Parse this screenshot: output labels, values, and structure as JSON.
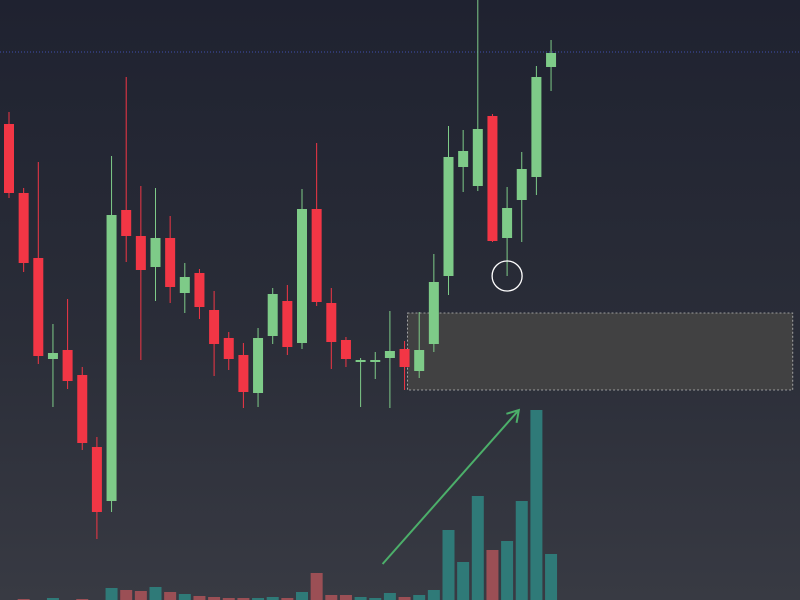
{
  "colors": {
    "background_top": "#1f2230",
    "background_bottom": "#383a43",
    "up": "#7ecb88",
    "down": "#f23645",
    "volume_up": "#2f7a78",
    "volume_down": "#9b4f55",
    "price_line": "#3f4fb0",
    "zone_fill": "#444444",
    "zone_border": "#bdbdbd",
    "marker": "#ffffff",
    "arrow": "#4caf6a"
  },
  "chart_data": {
    "type": "candlestick",
    "title": "",
    "xlabel": "",
    "ylabel": "",
    "grid": false,
    "legend": "none",
    "ylim": [
      0,
      600
    ],
    "volume_ylim": [
      0,
      190
    ],
    "horizontal_line": 548,
    "highlight_zone": {
      "x_start_index": 27.2,
      "x_end_index": 53.5,
      "y_low": 210,
      "y_high": 287
    },
    "circle_marker": {
      "index": 34,
      "value": 324
    },
    "trend_arrow": {
      "from_index": 25.5,
      "from_volume": 36,
      "to_index": 34.8,
      "to_volume": 190
    },
    "candles": [
      {
        "o": 476,
        "h": 488,
        "l": 402,
        "c": 407
      },
      {
        "o": 407,
        "h": 412,
        "l": 328,
        "c": 337
      },
      {
        "o": 342,
        "h": 438,
        "l": 236,
        "c": 244
      },
      {
        "o": 241,
        "h": 276,
        "l": 193,
        "c": 247
      },
      {
        "o": 250,
        "h": 301,
        "l": 211,
        "c": 219
      },
      {
        "o": 225,
        "h": 233,
        "l": 150,
        "c": 157
      },
      {
        "o": 153,
        "h": 163,
        "l": 61,
        "c": 88
      },
      {
        "o": 99,
        "h": 444,
        "l": 88,
        "c": 385
      },
      {
        "o": 390,
        "h": 523,
        "l": 338,
        "c": 364
      },
      {
        "o": 364,
        "h": 414,
        "l": 240,
        "c": 330
      },
      {
        "o": 333,
        "h": 412,
        "l": 299,
        "c": 362
      },
      {
        "o": 362,
        "h": 384,
        "l": 297,
        "c": 313
      },
      {
        "o": 307,
        "h": 337,
        "l": 287,
        "c": 323
      },
      {
        "o": 327,
        "h": 331,
        "l": 281,
        "c": 293
      },
      {
        "o": 290,
        "h": 309,
        "l": 224,
        "c": 256
      },
      {
        "o": 262,
        "h": 268,
        "l": 230,
        "c": 241
      },
      {
        "o": 245,
        "h": 257,
        "l": 192,
        "c": 208
      },
      {
        "o": 207,
        "h": 272,
        "l": 193,
        "c": 262
      },
      {
        "o": 264,
        "h": 312,
        "l": 256,
        "c": 306
      },
      {
        "o": 299,
        "h": 315,
        "l": 245,
        "c": 253
      },
      {
        "o": 257,
        "h": 411,
        "l": 251,
        "c": 391
      },
      {
        "o": 391,
        "h": 457,
        "l": 294,
        "c": 298
      },
      {
        "o": 297,
        "h": 312,
        "l": 231,
        "c": 258
      },
      {
        "o": 260,
        "h": 263,
        "l": 233,
        "c": 241
      },
      {
        "o": 240,
        "h": 242,
        "l": 193,
        "c": 240
      },
      {
        "o": 240,
        "h": 248,
        "l": 221,
        "c": 240
      },
      {
        "o": 242,
        "h": 289,
        "l": 192,
        "c": 249
      },
      {
        "o": 251,
        "h": 259,
        "l": 210,
        "c": 233
      },
      {
        "o": 229,
        "h": 288,
        "l": 222,
        "c": 250
      },
      {
        "o": 256,
        "h": 346,
        "l": 248,
        "c": 318
      },
      {
        "o": 324,
        "h": 474,
        "l": 305,
        "c": 443
      },
      {
        "o": 433,
        "h": 470,
        "l": 408,
        "c": 449
      },
      {
        "o": 414,
        "h": 600,
        "l": 409,
        "c": 471
      },
      {
        "o": 484,
        "h": 486,
        "l": 358,
        "c": 359
      },
      {
        "o": 362,
        "h": 413,
        "l": 324,
        "c": 392
      },
      {
        "o": 400,
        "h": 448,
        "l": 358,
        "c": 431
      },
      {
        "o": 423,
        "h": 534,
        "l": 405,
        "c": 523
      },
      {
        "o": 533,
        "h": 560,
        "l": 509,
        "c": 547
      }
    ],
    "volume": [
      0,
      1,
      0,
      2,
      0,
      1,
      0,
      12,
      10,
      9,
      13,
      8,
      6,
      4,
      3,
      2,
      2,
      2,
      3,
      2,
      8,
      27,
      5,
      5,
      3,
      2,
      7,
      3,
      5,
      10,
      70,
      38,
      104,
      50,
      59,
      99,
      190,
      46
    ]
  }
}
